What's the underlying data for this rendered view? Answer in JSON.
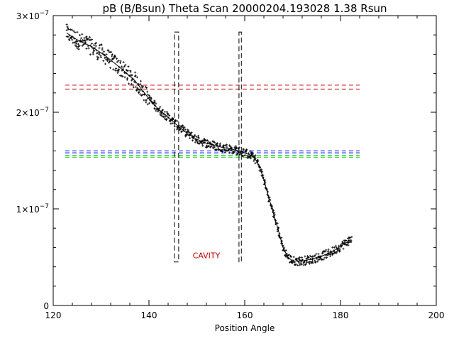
{
  "chart_data": {
    "type": "scatter",
    "title": "pB (B/Bsun) Theta Scan 20000204.193028 1.38 Rsun",
    "xlabel": "Position Angle",
    "ylabel": "",
    "xlim": [
      120,
      200
    ],
    "ylim": [
      0,
      3e-07
    ],
    "x_ticks": [
      {
        "value": 120,
        "label": "120"
      },
      {
        "value": 140,
        "label": "140"
      },
      {
        "value": 160,
        "label": "160"
      },
      {
        "value": 180,
        "label": "180"
      },
      {
        "value": 200,
        "label": "200"
      }
    ],
    "y_ticks": [
      {
        "value": 0,
        "label": "0",
        "mant": "",
        "exp": ""
      },
      {
        "value": 1e-07,
        "label": "1×10⁻⁷",
        "mant": "1×10",
        "exp": "−7"
      },
      {
        "value": 2e-07,
        "label": "2×10⁻⁷",
        "mant": "2×10",
        "exp": "−7"
      },
      {
        "value": 3e-07,
        "label": "3×10⁻⁷",
        "mant": "3×10",
        "exp": "−7"
      }
    ],
    "grid": false,
    "smooth_curve": {
      "x": [
        122.8,
        125,
        128,
        131,
        134,
        137,
        140,
        142,
        144,
        146,
        148,
        150,
        152,
        154,
        156,
        158,
        160,
        161,
        162,
        163,
        164,
        165,
        166,
        167,
        168,
        169,
        170,
        172,
        174,
        176,
        178,
        180,
        182
      ],
      "y": [
        2.82e-07,
        2.75e-07,
        2.68e-07,
        2.58e-07,
        2.46e-07,
        2.33e-07,
        2.14e-07,
        2.03e-07,
        1.95e-07,
        1.86e-07,
        1.78e-07,
        1.72e-07,
        1.68e-07,
        1.65e-07,
        1.63e-07,
        1.61e-07,
        1.58e-07,
        1.56e-07,
        1.53e-07,
        1.45e-07,
        1.3e-07,
        1.12e-07,
        9.5e-08,
        7.8e-08,
        6e-08,
        5e-08,
        4.6e-08,
        4.6e-08,
        4.8e-08,
        5.1e-08,
        5.5e-08,
        6.1e-08,
        6.8e-08
      ]
    },
    "scatter_x_range": [
      122.8,
      182.3
    ],
    "scatter_points_per_degree": 4,
    "scatter_spread": 4.5e-09,
    "horizontal_lines": [
      {
        "y": 2.28e-07,
        "color": "#c00000",
        "style": "dashed"
      },
      {
        "y": 2.24e-07,
        "color": "#c00000",
        "style": "dashed"
      },
      {
        "y": 1.6e-07,
        "color": "#0000ff",
        "style": "dashed"
      },
      {
        "y": 1.58e-07,
        "color": "#0000ff",
        "style": "dashed"
      },
      {
        "y": 1.555e-07,
        "color": "#00cc00",
        "style": "dashed"
      },
      {
        "y": 1.535e-07,
        "color": "#00cc00",
        "style": "dashed"
      }
    ],
    "cavity_boundaries": [
      {
        "x_left": 145.3,
        "x_right": 146.2,
        "y_top": 2.83e-07,
        "y_bottom": 4.5e-08
      },
      {
        "x_left": 158.8,
        "x_right": 159.3,
        "y_top": 2.83e-07,
        "y_bottom": 4.5e-08
      }
    ],
    "annotations": [
      {
        "text": "CAVITY",
        "x": 152.0,
        "y": 4.9e-08,
        "color": "#c00000"
      }
    ],
    "colors": {
      "axes": "#000000",
      "data": "#000000",
      "cavity_box": "#000000"
    }
  }
}
